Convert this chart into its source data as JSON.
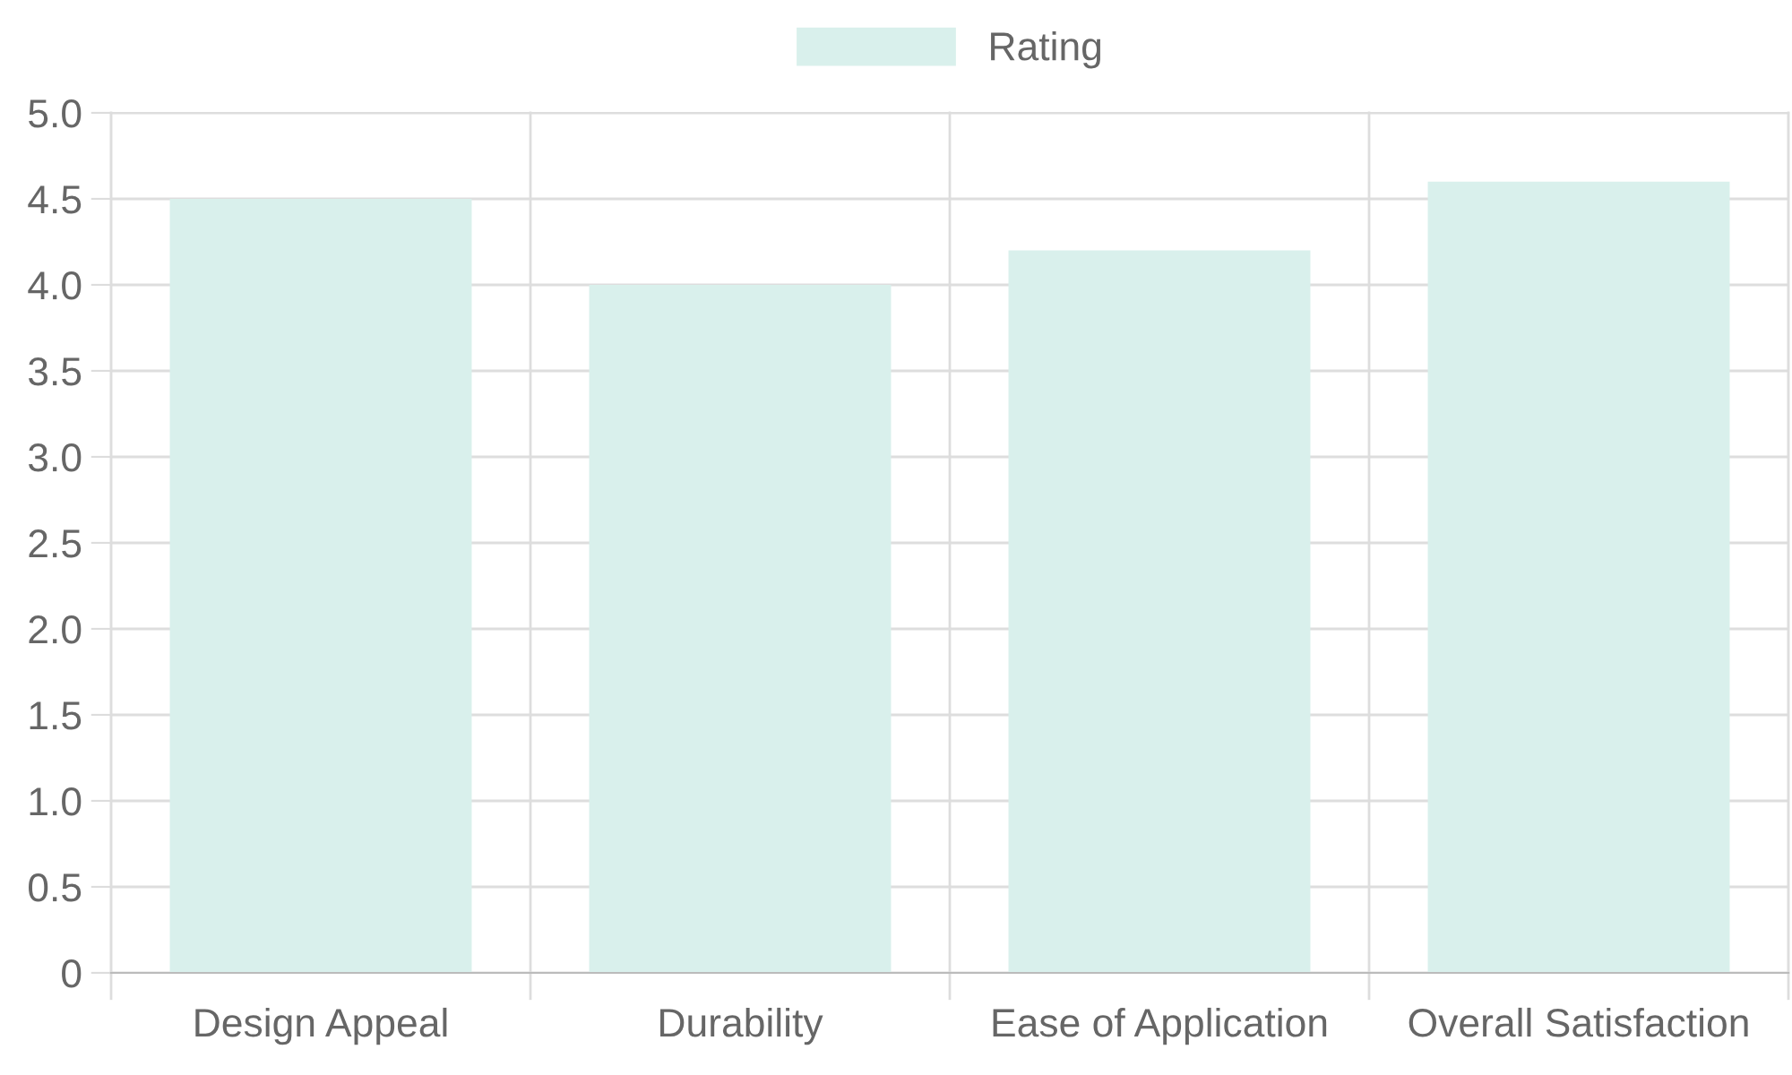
{
  "chart_data": {
    "type": "bar",
    "categories": [
      "Design Appeal",
      "Durability",
      "Ease of Application",
      "Overall Satisfaction"
    ],
    "series": [
      {
        "name": "Rating",
        "color": "#d9f0ec",
        "values": [
          4.5,
          4.0,
          4.2,
          4.6
        ]
      }
    ],
    "ylim": [
      0,
      5
    ],
    "yticks": [
      {
        "value": 0,
        "label": "0"
      },
      0.5,
      {
        "value": 1,
        "label": "1.0"
      },
      1.5,
      {
        "value": 2,
        "label": "2.0"
      },
      2.5,
      {
        "value": 3,
        "label": "3.0"
      },
      3.5,
      {
        "value": 4,
        "label": "4.0"
      },
      4.5,
      {
        "value": 5,
        "label": "5.0"
      }
    ],
    "grid": true,
    "legend": "top"
  }
}
